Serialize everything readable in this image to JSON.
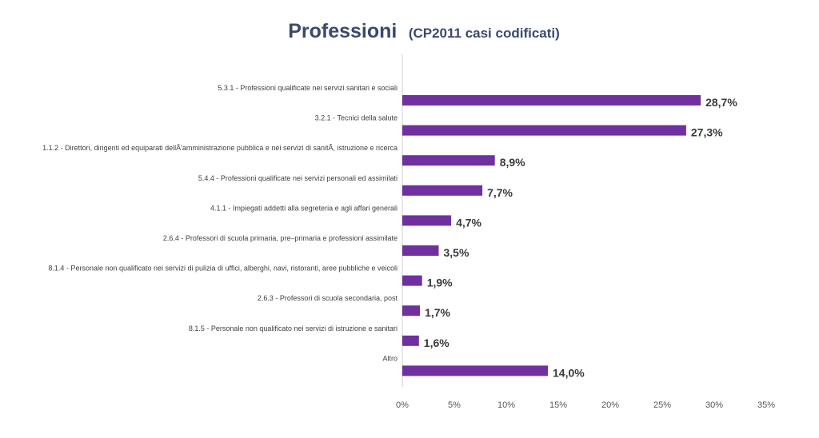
{
  "chart_data": {
    "type": "bar",
    "orientation": "horizontal",
    "title": "Professioni",
    "subtitle": "(CP2011 casi codificati)",
    "xlabel": "",
    "ylabel": "",
    "xlim": [
      0,
      35
    ],
    "x_ticks": [
      "0%",
      "5%",
      "10%",
      "15%",
      "20%",
      "25%",
      "30%",
      "35%"
    ],
    "grid": false,
    "bar_color": "#7030a0",
    "categories": [
      "5.3.1 - Professioni qualificate nei servizi sanitari e sociali",
      "3.2.1 - Tecnici della salute",
      "1.1.2 - Direttori, dirigenti ed equiparati dellÂ'amministrazione pubblica e nei servizi di sanitÃ, istruzione e ricerca",
      "5.4.4 - Professioni qualificate nei servizi personali ed assimilati",
      "4.1.1 - Impiegati addetti alla segreteria e agli affari generali",
      "2.6.4 - Professori di scuola primaria, pre–primaria e professioni assimilate",
      "8.1.4 - Personale non qualificato nei servizi di pulizia di uffici, alberghi, navi, ristoranti, aree pubbliche e veicoli",
      "2.6.3 - Professori di scuola secondaria, post",
      "8.1.5 - Personale non qualificato nei servizi di istruzione e sanitari",
      "Altro"
    ],
    "values": [
      28.7,
      27.3,
      8.9,
      7.7,
      4.7,
      3.5,
      1.9,
      1.7,
      1.6,
      14.0
    ],
    "value_labels": [
      "28,7%",
      "27,3%",
      "8,9%",
      "7,7%",
      "4,7%",
      "3,5%",
      "1,9%",
      "1,7%",
      "1,6%",
      "14,0%"
    ]
  }
}
